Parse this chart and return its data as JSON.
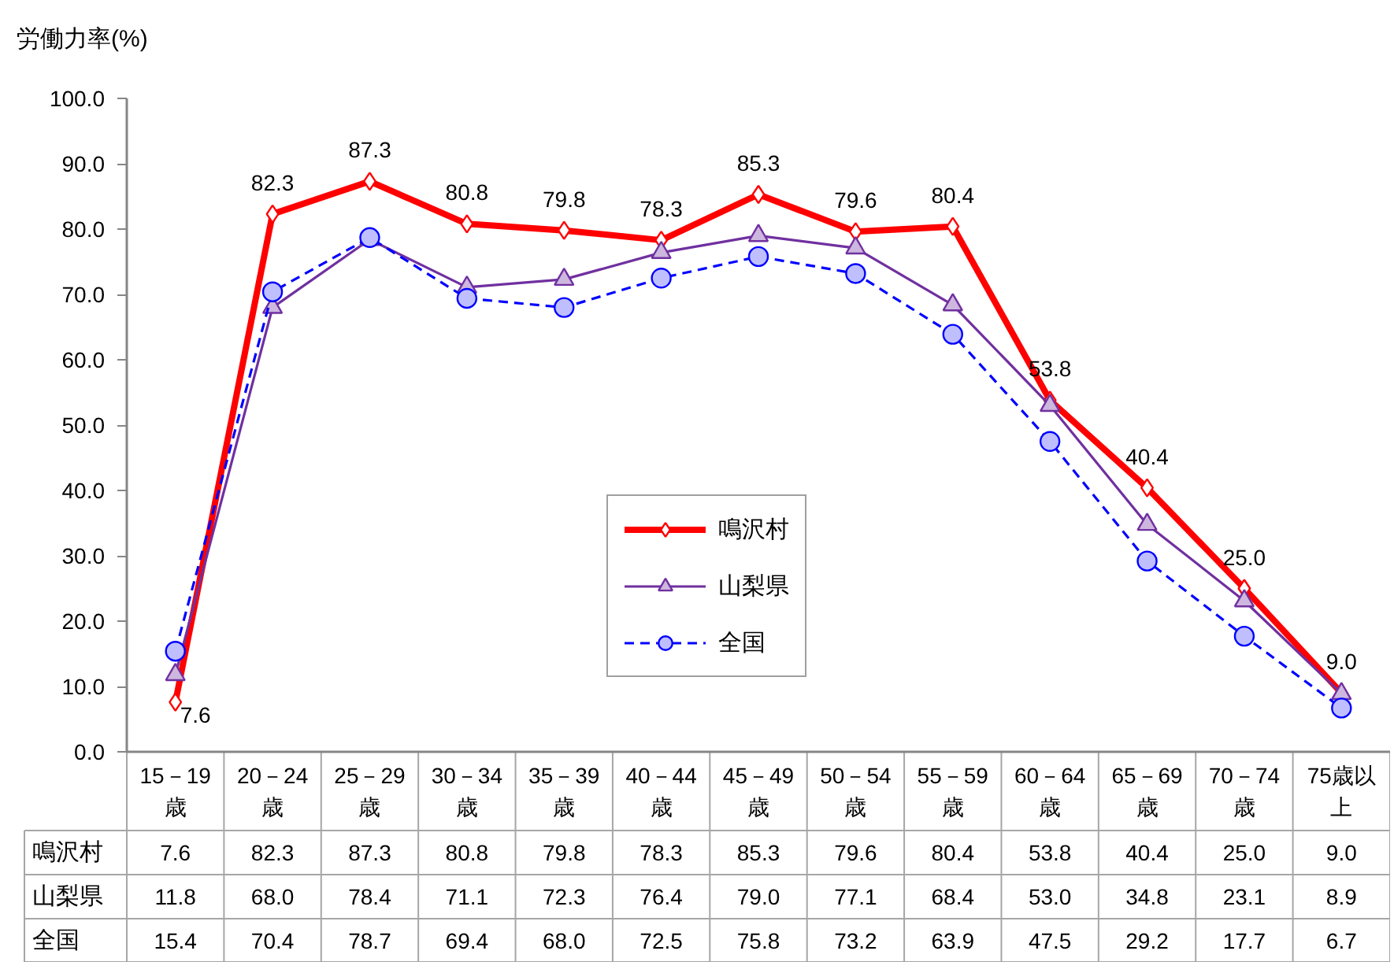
{
  "chart_data": {
    "type": "line",
    "ylabel": "労働力率(%)",
    "categories": [
      "15－19歳",
      "20－24歳",
      "25－29歳",
      "30－34歳",
      "35－39歳",
      "40－44歳",
      "45－49歳",
      "50－54歳",
      "55－59歳",
      "60－64歳",
      "65－69歳",
      "70－74歳",
      "75歳以上"
    ],
    "ylim": [
      0,
      100
    ],
    "yticks": [
      {
        "value": 0,
        "label": "0.0"
      },
      {
        "value": 10,
        "label": "10.0"
      },
      {
        "value": 20,
        "label": "20.0"
      },
      {
        "value": 30,
        "label": "30.0"
      },
      {
        "value": 40,
        "label": "40.0"
      },
      {
        "value": 50,
        "label": "50.0"
      },
      {
        "value": 60,
        "label": "60.0"
      },
      {
        "value": 70,
        "label": "70.0"
      },
      {
        "value": 80,
        "label": "80.0"
      },
      {
        "value": 90,
        "label": "90.0"
      },
      {
        "value": 100,
        "label": "100.0"
      }
    ],
    "series": [
      {
        "name": "鳴沢村",
        "color": "#ff0000",
        "marker": "diamond",
        "line_style": "solid",
        "data_labels": true,
        "values": [
          7.6,
          82.3,
          87.3,
          80.8,
          79.8,
          78.3,
          85.3,
          79.6,
          80.4,
          53.8,
          40.4,
          25.0,
          9.0
        ],
        "value_labels": [
          "7.6",
          "82.3",
          "87.3",
          "80.8",
          "79.8",
          "78.3",
          "85.3",
          "79.6",
          "80.4",
          "53.8",
          "40.4",
          "25.0",
          "9.0"
        ]
      },
      {
        "name": "山梨県",
        "color": "#7030a0",
        "marker": "triangle",
        "line_style": "solid",
        "values": [
          11.8,
          68.0,
          78.4,
          71.1,
          72.3,
          76.4,
          79.0,
          77.1,
          68.4,
          53.0,
          34.8,
          23.1,
          8.9
        ],
        "value_labels": [
          "11.8",
          "68.0",
          "78.4",
          "71.1",
          "72.3",
          "76.4",
          "79.0",
          "77.1",
          "68.4",
          "53.0",
          "34.8",
          "23.1",
          "8.9"
        ]
      },
      {
        "name": "全国",
        "color": "#0000ff",
        "marker": "circle",
        "line_style": "dashed",
        "values": [
          15.4,
          70.4,
          78.7,
          69.4,
          68.0,
          72.5,
          75.8,
          73.2,
          63.9,
          47.5,
          29.2,
          17.7,
          6.7
        ],
        "value_labels": [
          "15.4",
          "70.4",
          "78.7",
          "69.4",
          "68.0",
          "72.5",
          "75.8",
          "73.2",
          "63.9",
          "47.5",
          "29.2",
          "17.7",
          "6.7"
        ]
      }
    ],
    "legend": "bottom"
  }
}
